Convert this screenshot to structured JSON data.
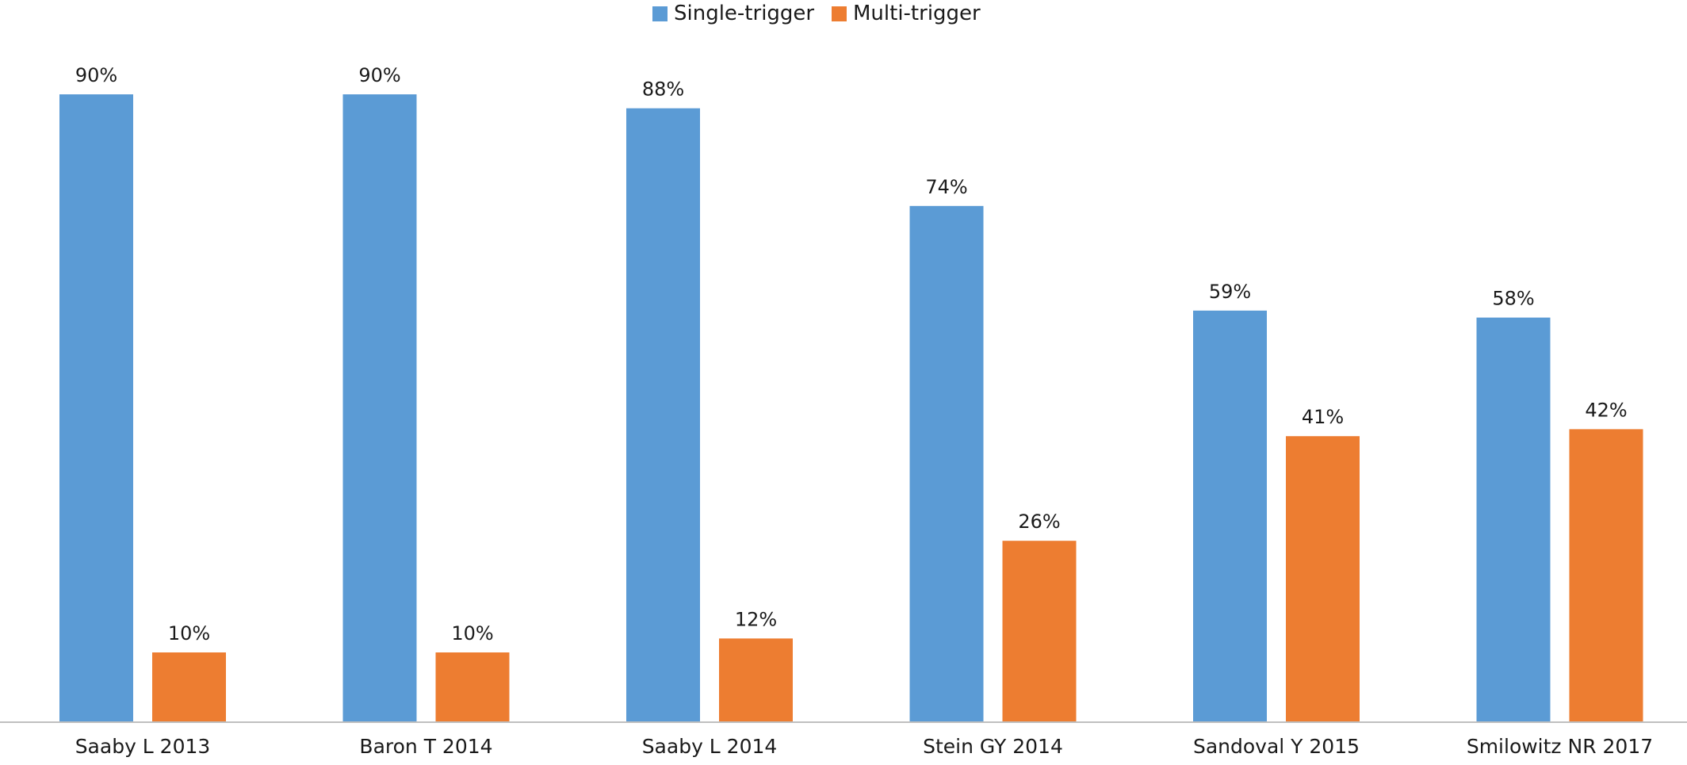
{
  "chart_data": {
    "type": "bar",
    "categories": [
      "Saaby L 2013",
      "Baron T 2014",
      "Saaby L 2014",
      "Stein GY 2014",
      "Sandoval Y 2015",
      "Smilowitz NR 2017"
    ],
    "series": [
      {
        "name": "Single-trigger",
        "values": [
          90,
          90,
          88,
          74,
          59,
          58
        ],
        "labels": [
          "90%",
          "90%",
          "88%",
          "74%",
          "59%",
          "58%"
        ],
        "color": "#5b9bd5"
      },
      {
        "name": "Multi-trigger",
        "values": [
          10,
          10,
          12,
          26,
          41,
          42
        ],
        "labels": [
          "10%",
          "10%",
          "12%",
          "26%",
          "41%",
          "42%"
        ],
        "color": "#ed7d31"
      }
    ],
    "ylim": [
      0,
      100
    ],
    "grid": false,
    "legend_position": "top-center"
  }
}
